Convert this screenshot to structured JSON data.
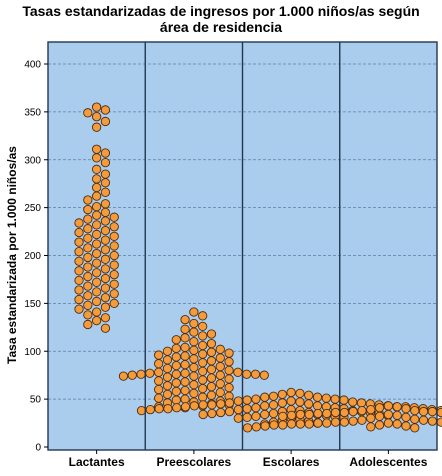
{
  "chart_data": {
    "type": "scatter",
    "subtype": "beeswarm",
    "title_lines": [
      "Tasas estandarizadas de ingresos por 1.000 niños/as según",
      "área de residencia"
    ],
    "ylabel": "Tasa estandarizada por 1.000 niños/as",
    "xlabel": "",
    "ylim": [
      0,
      420
    ],
    "yticks": [
      0,
      50,
      100,
      150,
      200,
      250,
      300,
      350,
      400
    ],
    "grid": true,
    "legend": "none",
    "categories": [
      "Lactantes",
      "Preescolares",
      "Escolares",
      "Adolescentes"
    ],
    "series": [
      {
        "category": "Lactantes",
        "values": [
          355,
          352,
          349,
          345,
          340,
          334,
          311,
          307,
          302,
          297,
          290,
          285,
          280,
          276,
          271,
          266,
          262,
          258,
          254,
          251,
          248,
          245,
          242,
          240,
          238,
          236,
          234,
          232,
          230,
          228,
          226,
          224,
          222,
          220,
          218,
          216,
          214,
          212,
          210,
          208,
          206,
          204,
          202,
          200,
          198,
          196,
          194,
          192,
          190,
          188,
          186,
          184,
          182,
          180,
          178,
          176,
          174,
          172,
          170,
          168,
          166,
          164,
          162,
          160,
          158,
          156,
          154,
          152,
          150,
          148,
          146,
          144,
          141,
          138,
          135,
          132,
          128,
          124
        ]
      },
      {
        "category": "Preescolares",
        "values": [
          141,
          137,
          133,
          129,
          126,
          123,
          120,
          118,
          116,
          114,
          112,
          110,
          108,
          106,
          104,
          103,
          102,
          101,
          100,
          99,
          98,
          97,
          96,
          95,
          94,
          93,
          92,
          91,
          90,
          89,
          88,
          87,
          86,
          85,
          84,
          83,
          82,
          81,
          80,
          79,
          78,
          78,
          77,
          77,
          76,
          76,
          76,
          76,
          75,
          75,
          75,
          74,
          74,
          73,
          72,
          71,
          70,
          69,
          68,
          67,
          66,
          65,
          64,
          63,
          62,
          61,
          60,
          59,
          58,
          57,
          56,
          55,
          54,
          53,
          52,
          51,
          50,
          49,
          48,
          47,
          46,
          45,
          44,
          43,
          42,
          41
        ]
      },
      {
        "category": "Escolares",
        "values": [
          57,
          56,
          55,
          54,
          53,
          52,
          52,
          51,
          50,
          50,
          49,
          49,
          48,
          48,
          47,
          47,
          46,
          46,
          46,
          45,
          45,
          45,
          44,
          44,
          44,
          44,
          43,
          43,
          43,
          43,
          42,
          42,
          42,
          42,
          41,
          41,
          41,
          41,
          40,
          40,
          40,
          40,
          40,
          39,
          39,
          39,
          39,
          38,
          38,
          38,
          38,
          37,
          37,
          37,
          37,
          36,
          36,
          36,
          35,
          35,
          35,
          34,
          34,
          34,
          33,
          33,
          32,
          32,
          31,
          31,
          30,
          30,
          29,
          28,
          27,
          26,
          25,
          24
        ]
      },
      {
        "category": "Adolescentes",
        "values": [
          43,
          42,
          41,
          40,
          39,
          38,
          38,
          37,
          37,
          37,
          36,
          36,
          36,
          36,
          35,
          35,
          35,
          35,
          34,
          34,
          34,
          34,
          34,
          33,
          33,
          33,
          32,
          32,
          32,
          31,
          30,
          29,
          28,
          28,
          27,
          27,
          26,
          26,
          26,
          25,
          25,
          25,
          25,
          25,
          25,
          24,
          24,
          24,
          24,
          24,
          24,
          23,
          23,
          23,
          23,
          23,
          22,
          22,
          22,
          22,
          21,
          21,
          21,
          20,
          20
        ]
      }
    ]
  },
  "colors": {
    "plot_background": "#aacdee",
    "panel_border": "#243650",
    "gridline": "#5b7ea8",
    "point_fill": "#f49b3b",
    "point_stroke": "#4d2b10",
    "text": "#000000",
    "page_background": "#ffffff"
  }
}
